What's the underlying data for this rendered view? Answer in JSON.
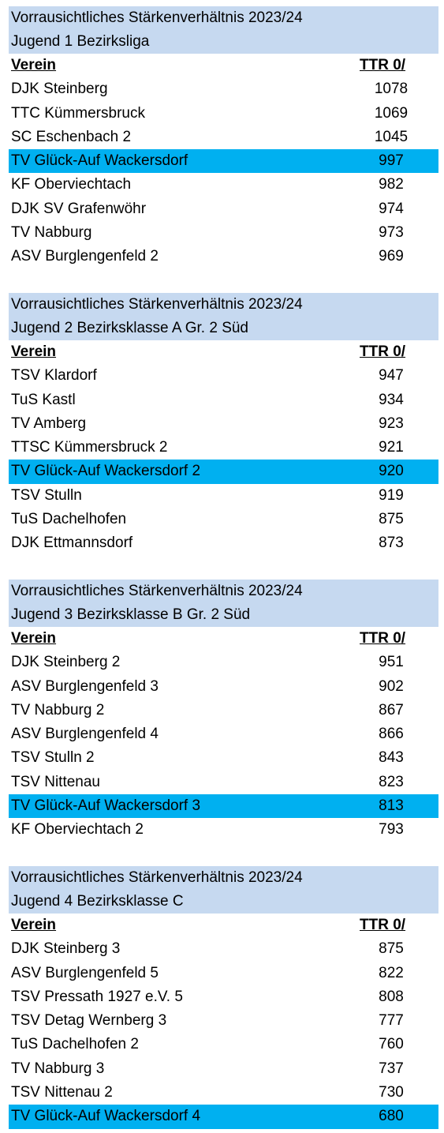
{
  "tables": [
    {
      "title": "Vorrausichtliches Stärkenverhältnis 2023/24",
      "subtitle": "Jugend 1 Bezirksliga",
      "col_team": "Verein",
      "col_ttr": "TTR 0/",
      "rows": [
        {
          "team": "DJK Steinberg",
          "ttr": "1078"
        },
        {
          "team": "TTC Kümmersbruck",
          "ttr": "1069"
        },
        {
          "team": "SC Eschenbach 2",
          "ttr": "1045"
        },
        {
          "team": "TV Glück-Auf Wackersdorf",
          "ttr": "997",
          "highlight": true
        },
        {
          "team": "KF Oberviechtach",
          "ttr": "982"
        },
        {
          "team": "DJK SV Grafenwöhr",
          "ttr": "974"
        },
        {
          "team": "TV Nabburg",
          "ttr": "973"
        },
        {
          "team": "ASV Burglengenfeld 2",
          "ttr": "969"
        }
      ]
    },
    {
      "title": "Vorrausichtliches Stärkenverhältnis 2023/24",
      "subtitle": "Jugend 2 Bezirksklasse A Gr. 2 Süd",
      "col_team": "Verein",
      "col_ttr": "TTR 0/",
      "rows": [
        {
          "team": "TSV Klardorf",
          "ttr": "947"
        },
        {
          "team": "TuS Kastl",
          "ttr": "934"
        },
        {
          "team": "TV Amberg",
          "ttr": "923"
        },
        {
          "team": "TTSC Kümmersbruck 2",
          "ttr": "921"
        },
        {
          "team": "TV Glück-Auf Wackersdorf 2",
          "ttr": "920",
          "highlight": true
        },
        {
          "team": "TSV Stulln",
          "ttr": "919"
        },
        {
          "team": "TuS Dachelhofen",
          "ttr": "875"
        },
        {
          "team": "DJK Ettmannsdorf",
          "ttr": "873"
        }
      ]
    },
    {
      "title": "Vorrausichtliches Stärkenverhältnis 2023/24",
      "subtitle": "Jugend 3 Bezirksklasse B Gr. 2 Süd",
      "col_team": "Verein",
      "col_ttr": "TTR 0/",
      "rows": [
        {
          "team": "DJK Steinberg 2",
          "ttr": "951"
        },
        {
          "team": "ASV Burglengenfeld 3",
          "ttr": "902"
        },
        {
          "team": "TV Nabburg 2",
          "ttr": "867"
        },
        {
          "team": "ASV Burglengenfeld 4",
          "ttr": "866"
        },
        {
          "team": "TSV Stulln 2",
          "ttr": "843"
        },
        {
          "team": "TSV Nittenau",
          "ttr": "823"
        },
        {
          "team": "TV Glück-Auf Wackersdorf 3",
          "ttr": "813",
          "highlight": true
        },
        {
          "team": "KF Oberviechtach 2",
          "ttr": "793"
        }
      ]
    },
    {
      "title": "Vorrausichtliches Stärkenverhältnis 2023/24",
      "subtitle": "Jugend 4 Bezirksklasse C",
      "col_team": "Verein",
      "col_ttr": "TTR 0/",
      "rows": [
        {
          "team": "DJK Steinberg 3",
          "ttr": "875"
        },
        {
          "team": "ASV Burglengenfeld 5",
          "ttr": "822"
        },
        {
          "team": "TSV Pressath 1927 e.V. 5",
          "ttr": "808"
        },
        {
          "team": "TSV Detag Wernberg 3",
          "ttr": "777"
        },
        {
          "team": "TuS Dachelhofen 2",
          "ttr": "760"
        },
        {
          "team": "TV Nabburg 3",
          "ttr": "737"
        },
        {
          "team": "TSV Nittenau 2",
          "ttr": "730"
        },
        {
          "team": "TV Glück-Auf Wackersdorf 4",
          "ttr": "680",
          "highlight": true
        }
      ]
    }
  ]
}
